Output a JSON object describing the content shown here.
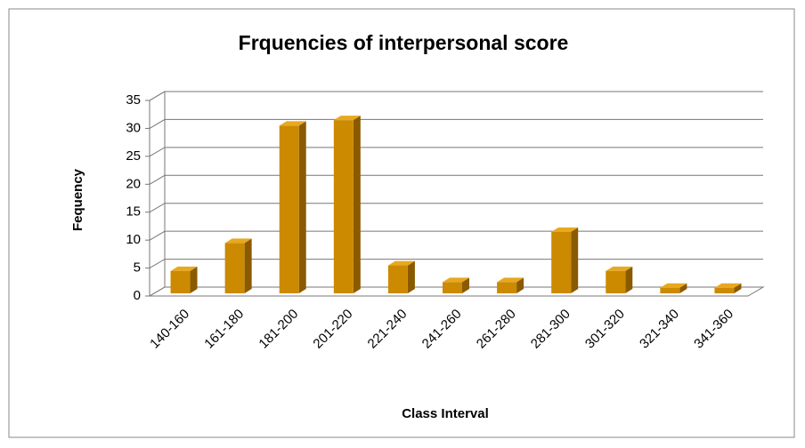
{
  "chart_data": {
    "type": "bar",
    "title": "Frquencies of interpersonal score",
    "x_label": "Class Interval",
    "y_label": "Fequency",
    "categories": [
      "140-160",
      "161-180",
      "181-200",
      "201-220",
      "221-240",
      "241-260",
      "261-280",
      "281-300",
      "301-320",
      "321-340",
      "341-360"
    ],
    "values": [
      4,
      9,
      30,
      31,
      5,
      2,
      2,
      11,
      4,
      1,
      1
    ],
    "color": "#cc8a00",
    "ylim": [
      0,
      35
    ],
    "yticks": [
      0,
      5,
      10,
      15,
      20,
      25,
      30,
      35
    ],
    "grid": true
  }
}
